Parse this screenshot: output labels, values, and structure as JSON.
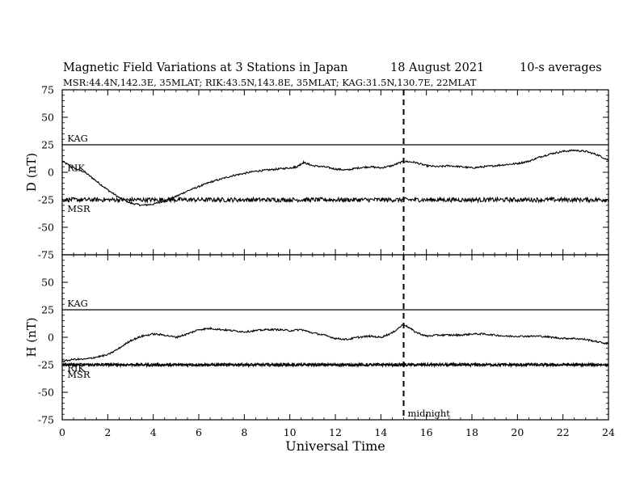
{
  "header": {
    "title": "Magnetic Field Variations at 3 Stations in Japan",
    "date": "18  August  2021",
    "averaging": "10-s averages",
    "stations": "MSR:44.4N,142.3E, 35MLAT;  RIK:43.5N,143.8E, 35MLAT;  KAG:31.5N,130.7E, 22MLAT"
  },
  "chart_data": [
    {
      "type": "line",
      "panel": "D",
      "ylabel": "D (nT)",
      "xlabel": "Universal Time",
      "xlim": [
        0,
        24
      ],
      "ylim": [
        -75,
        75
      ],
      "yticks": [
        "75",
        "50",
        "25",
        "0",
        "-25",
        "-50",
        "-75"
      ],
      "xticks": [
        "0",
        "2",
        "4",
        "6",
        "8",
        "10",
        "12",
        "14",
        "16",
        "18",
        "20",
        "22",
        "24"
      ],
      "grid": false,
      "series": [
        {
          "name": "KAG",
          "label_at": [
            0.15,
            31
          ],
          "x": [
            0,
            24
          ],
          "y": [
            25,
            25
          ],
          "noise": 0
        },
        {
          "name": "RIK",
          "label_at": [
            0.15,
            4
          ],
          "x": [
            0,
            0.5,
            1.0,
            1.5,
            2.0,
            2.5,
            3.0,
            3.5,
            4.0,
            4.5,
            5.0,
            5.5,
            6.0,
            6.5,
            7.0,
            7.5,
            8.0,
            8.5,
            9.0,
            9.5,
            10.0,
            10.3,
            10.6,
            11.0,
            11.5,
            12.0,
            12.5,
            13.0,
            13.5,
            14.0,
            14.5,
            15.0,
            15.5,
            16.0,
            16.5,
            17.0,
            17.5,
            18.0,
            18.5,
            19.0,
            19.5,
            20.0,
            20.5,
            21.0,
            21.5,
            22.0,
            22.5,
            23.0,
            23.5,
            24.0
          ],
          "y": [
            10,
            4,
            0,
            -8,
            -16,
            -23,
            -28,
            -30,
            -29,
            -26,
            -22,
            -17,
            -13,
            -9,
            -6,
            -3,
            -1,
            1,
            2,
            3,
            4,
            5,
            9,
            6,
            5,
            3,
            2,
            4,
            5,
            4,
            6,
            10,
            9,
            6,
            5,
            6,
            5,
            4,
            5,
            6,
            7,
            8,
            10,
            14,
            17,
            19,
            20,
            19,
            16,
            11
          ],
          "noise": 0.8
        },
        {
          "name": "MSR",
          "label_at": [
            0.15,
            -33
          ],
          "x": [
            0,
            24
          ],
          "y": [
            -25,
            -25
          ],
          "noise": 2.0
        }
      ],
      "annotations": []
    },
    {
      "type": "line",
      "panel": "H",
      "ylabel": "H (nT)",
      "xlabel": "Universal Time",
      "xlim": [
        0,
        24
      ],
      "ylim": [
        -75,
        75
      ],
      "yticks": [
        "75",
        "50",
        "25",
        "0",
        "-25",
        "-50",
        "-75"
      ],
      "xticks": [
        "0",
        "2",
        "4",
        "6",
        "8",
        "10",
        "12",
        "14",
        "16",
        "18",
        "20",
        "22",
        "24"
      ],
      "grid": false,
      "series": [
        {
          "name": "KAG",
          "label_at": [
            0.15,
            31
          ],
          "x": [
            0,
            24
          ],
          "y": [
            25,
            25
          ],
          "noise": 0
        },
        {
          "name": "RIK",
          "label_at": [
            0.15,
            -28
          ],
          "x": [
            0,
            24
          ],
          "y": [
            -25,
            -25
          ],
          "noise": 1.5
        },
        {
          "name": "MSR",
          "label_at": [
            0.15,
            -34
          ],
          "x": [
            0,
            24
          ],
          "y": [
            -25,
            -25
          ],
          "noise": 1.0
        },
        {
          "name": "",
          "x": [
            0,
            0.5,
            1.0,
            1.5,
            2.0,
            2.5,
            3.0,
            3.5,
            4.0,
            4.5,
            5.0,
            5.5,
            6.0,
            6.5,
            7.0,
            7.5,
            8.0,
            8.5,
            9.0,
            9.5,
            10.0,
            10.5,
            11.0,
            11.5,
            12.0,
            12.5,
            13.0,
            13.5,
            14.0,
            14.5,
            15.0,
            15.5,
            16.0,
            16.5,
            17.0,
            17.5,
            18.0,
            18.5,
            19.0,
            19.5,
            20.0,
            20.5,
            21.0,
            21.5,
            22.0,
            22.5,
            23.0,
            23.5,
            24.0
          ],
          "y": [
            -22,
            -20,
            -20,
            -18,
            -16,
            -10,
            -3,
            1,
            3,
            2,
            0,
            3,
            7,
            8,
            7,
            6,
            5,
            6,
            7,
            7,
            6,
            7,
            4,
            2,
            -1,
            -2,
            0,
            1,
            0,
            4,
            12,
            5,
            1,
            2,
            2,
            2,
            3,
            3,
            2,
            1,
            1,
            1,
            1,
            0,
            -1,
            -1,
            -2,
            -4,
            -6
          ],
          "noise": 0.8
        }
      ],
      "annotations": [
        {
          "text": "midnight",
          "x": 15
        }
      ]
    }
  ]
}
